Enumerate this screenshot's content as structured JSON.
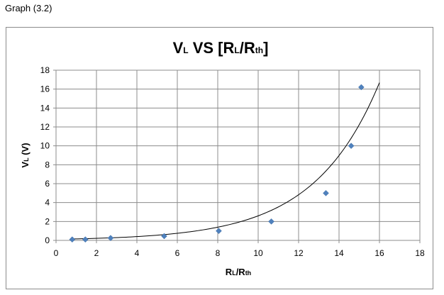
{
  "page": {
    "caption": "Graph (3.2)"
  },
  "chart_data": {
    "type": "scatter",
    "title": {
      "main_a": "V",
      "sub_a": "L",
      "main_b": " VS [R",
      "sub_b": "L",
      "main_c": "/R",
      "sub_c": "th",
      "main_d": "]"
    },
    "xlabel": {
      "main_a": "R",
      "sub_a": "L",
      "main_b": "/R",
      "sub_b": "th"
    },
    "ylabel": {
      "main_a": "V",
      "sub_a": "L",
      "main_b": " (V)"
    },
    "xlim": [
      0,
      18
    ],
    "ylim": [
      0,
      18
    ],
    "x_ticks": [
      "0",
      "2",
      "4",
      "6",
      "8",
      "10",
      "12",
      "14",
      "16",
      "18"
    ],
    "y_ticks": [
      "0",
      "2",
      "4",
      "6",
      "8",
      "10",
      "12",
      "14",
      "16",
      "18"
    ],
    "grid": true,
    "legend": "none",
    "series": [
      {
        "marker": "diamond",
        "color": "#4f81bd",
        "points": [
          {
            "x": 0.8,
            "y": 0.1
          },
          {
            "x": 1.45,
            "y": 0.1
          },
          {
            "x": 2.7,
            "y": 0.25
          },
          {
            "x": 5.35,
            "y": 0.45
          },
          {
            "x": 8.05,
            "y": 1.0
          },
          {
            "x": 10.65,
            "y": 2.0
          },
          {
            "x": 13.35,
            "y": 5.0
          },
          {
            "x": 14.6,
            "y": 10.0
          },
          {
            "x": 15.1,
            "y": 16.2
          }
        ]
      }
    ],
    "trendline": {
      "type": "exponential",
      "color": "#000000",
      "x_range": [
        0.8,
        16
      ],
      "a": 0.117,
      "b": 0.31
    }
  }
}
